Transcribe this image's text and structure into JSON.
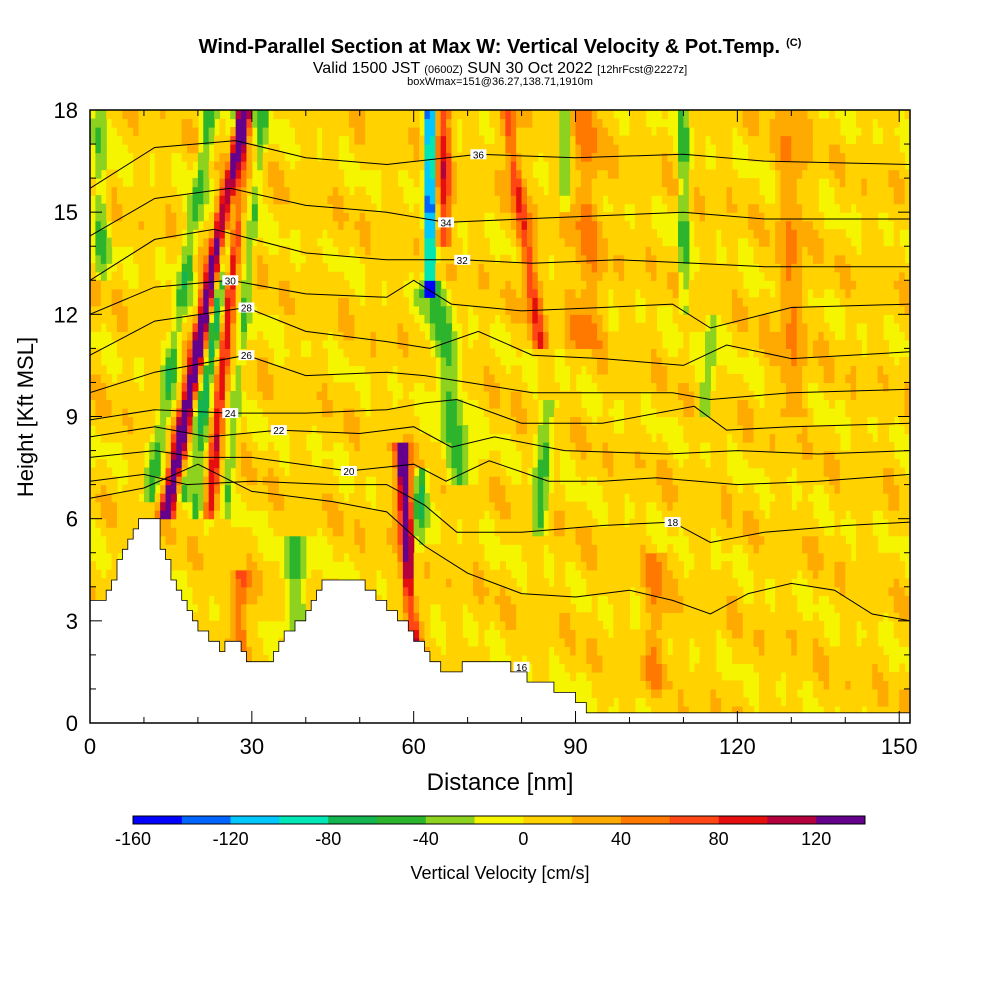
{
  "title": "Wind-Parallel Section at Max W: Vertical Velocity & Pot.Temp.",
  "title_mark": "(C)",
  "subtitle_main": "Valid 1500 JST",
  "subtitle_z": "(0600Z)",
  "subtitle_date": "SUN 30 Oct 2022",
  "subtitle_fcst": "[12hrFcst@2227z]",
  "subtitle2": "boxWmax=151@36.27,138.71,1910m",
  "colors": {
    "plot_base": "#f5f500",
    "terrain": "#ffffff",
    "contour": "#000000",
    "frame": "#000000"
  },
  "chart_data": {
    "type": "heatmap",
    "xlabel": "Distance [nm]",
    "ylabel": "Height [Kft MSL]",
    "xlim": [
      0,
      152
    ],
    "ylim": [
      0,
      18
    ],
    "x_ticks": [
      "0",
      "30",
      "60",
      "90",
      "120",
      "150"
    ],
    "x_tick_values": [
      0,
      30,
      60,
      90,
      120,
      150
    ],
    "y_ticks": [
      "0",
      "3",
      "6",
      "9",
      "12",
      "15",
      "18"
    ],
    "y_tick_values": [
      0,
      3,
      6,
      9,
      12,
      15,
      18
    ],
    "colorbar": {
      "label": "Vertical Velocity [cm/s]",
      "tick_labels": [
        "-160",
        "-120",
        "-80",
        "-40",
        "0",
        "40",
        "80",
        "120"
      ],
      "tick_values": [
        -160,
        -120,
        -80,
        -40,
        0,
        40,
        80,
        120
      ],
      "range": [
        -160,
        140
      ],
      "step": 20,
      "bin_colors": [
        "#0000ff",
        "#0064ff",
        "#00c8ff",
        "#00e6b4",
        "#14b450",
        "#2db42d",
        "#8cd21e",
        "#f5f500",
        "#ffd200",
        "#ffaa00",
        "#ff7800",
        "#ff4614",
        "#e60f0f",
        "#b4003c",
        "#64008c"
      ]
    },
    "terrain_profile": [
      [
        0,
        3.6
      ],
      [
        2,
        3.6
      ],
      [
        4,
        4.3
      ],
      [
        6,
        5.0
      ],
      [
        8,
        5.6
      ],
      [
        9.5,
        6.1
      ],
      [
        12,
        6.1
      ],
      [
        13,
        5.2
      ],
      [
        15,
        4.3
      ],
      [
        17,
        3.5
      ],
      [
        19,
        3.0
      ],
      [
        22,
        2.4
      ],
      [
        24,
        2.2
      ],
      [
        27,
        2.5
      ],
      [
        29,
        1.7
      ],
      [
        33,
        1.9
      ],
      [
        36,
        2.7
      ],
      [
        38,
        2.9
      ],
      [
        40,
        3.2
      ],
      [
        43,
        4.3
      ],
      [
        48,
        4.3
      ],
      [
        52,
        3.8
      ],
      [
        56,
        3.3
      ],
      [
        59,
        2.7
      ],
      [
        61,
        2.3
      ],
      [
        63,
        1.9
      ],
      [
        66,
        1.4
      ],
      [
        68,
        1.4
      ],
      [
        70,
        1.9
      ],
      [
        75,
        1.9
      ],
      [
        79,
        1.4
      ],
      [
        82,
        1.3
      ],
      [
        85,
        1.1
      ],
      [
        88,
        0.9
      ],
      [
        90,
        0.6
      ],
      [
        93,
        0.35
      ],
      [
        152,
        0.35
      ]
    ],
    "series": [
      {
        "name": "theta 16",
        "label": "16",
        "label_at": [
          80,
          1.65
        ],
        "values": [
          [
            0,
            6.6
          ],
          [
            10,
            6.9
          ],
          [
            20,
            7.6
          ],
          [
            30,
            6.8
          ],
          [
            45,
            6.5
          ],
          [
            55,
            6.2
          ],
          [
            62,
            5.2
          ],
          [
            70,
            4.4
          ],
          [
            80,
            3.8
          ],
          [
            90,
            3.7
          ],
          [
            100,
            3.9
          ],
          [
            108,
            3.6
          ],
          [
            115,
            3.2
          ],
          [
            122,
            3.8
          ],
          [
            130,
            4.1
          ],
          [
            138,
            3.9
          ],
          [
            145,
            3.2
          ],
          [
            152,
            3.0
          ]
        ]
      },
      {
        "name": "theta 18",
        "label": "18",
        "label_at": [
          108,
          5.9
        ],
        "values": [
          [
            0,
            7.1
          ],
          [
            10,
            7.3
          ],
          [
            18,
            7.0
          ],
          [
            30,
            7.1
          ],
          [
            45,
            7.0
          ],
          [
            55,
            7.0
          ],
          [
            62,
            6.4
          ],
          [
            68,
            5.6
          ],
          [
            80,
            5.6
          ],
          [
            95,
            5.8
          ],
          [
            108,
            5.9
          ],
          [
            115,
            5.3
          ],
          [
            125,
            5.6
          ],
          [
            140,
            5.8
          ],
          [
            152,
            5.9
          ]
        ]
      },
      {
        "name": "theta 20",
        "label": "20",
        "label_at": [
          48,
          7.4
        ],
        "values": [
          [
            0,
            7.8
          ],
          [
            12,
            8.0
          ],
          [
            20,
            7.8
          ],
          [
            30,
            7.8
          ],
          [
            48,
            7.4
          ],
          [
            60,
            7.6
          ],
          [
            66,
            7.1
          ],
          [
            74,
            7.7
          ],
          [
            85,
            7.1
          ],
          [
            95,
            7.1
          ],
          [
            105,
            7.2
          ],
          [
            120,
            7.0
          ],
          [
            135,
            7.1
          ],
          [
            152,
            7.3
          ]
        ]
      },
      {
        "name": "theta 22",
        "label": "22",
        "label_at": [
          35,
          8.6
        ],
        "values": [
          [
            0,
            8.4
          ],
          [
            12,
            8.7
          ],
          [
            22,
            8.4
          ],
          [
            35,
            8.6
          ],
          [
            50,
            8.5
          ],
          [
            60,
            8.7
          ],
          [
            67,
            8.1
          ],
          [
            75,
            8.4
          ],
          [
            88,
            8.0
          ],
          [
            107,
            7.9
          ],
          [
            120,
            8.0
          ],
          [
            135,
            7.9
          ],
          [
            152,
            8.0
          ]
        ]
      },
      {
        "name": "theta 24",
        "label": "24",
        "label_at": [
          26,
          9.1
        ],
        "values": [
          [
            0,
            8.9
          ],
          [
            12,
            9.2
          ],
          [
            26,
            9.1
          ],
          [
            40,
            9.1
          ],
          [
            55,
            9.2
          ],
          [
            62,
            9.4
          ],
          [
            68,
            9.5
          ],
          [
            80,
            8.8
          ],
          [
            95,
            8.8
          ],
          [
            112,
            9.3
          ],
          [
            118,
            8.6
          ],
          [
            130,
            8.7
          ],
          [
            152,
            8.8
          ]
        ]
      },
      {
        "name": "theta 26",
        "label": "26",
        "label_at": [
          29,
          10.8
        ],
        "values": [
          [
            0,
            9.7
          ],
          [
            12,
            10.3
          ],
          [
            29,
            10.8
          ],
          [
            40,
            10.2
          ],
          [
            55,
            10.3
          ],
          [
            62,
            10.2
          ],
          [
            70,
            10.0
          ],
          [
            82,
            9.7
          ],
          [
            95,
            9.7
          ],
          [
            108,
            9.7
          ],
          [
            115,
            9.5
          ],
          [
            130,
            9.7
          ],
          [
            152,
            9.8
          ]
        ]
      },
      {
        "name": "theta 28",
        "label": "28",
        "label_at": [
          29,
          12.2
        ],
        "values": [
          [
            0,
            10.8
          ],
          [
            12,
            11.8
          ],
          [
            29,
            12.2
          ],
          [
            40,
            11.5
          ],
          [
            55,
            11.2
          ],
          [
            63,
            11.0
          ],
          [
            72,
            11.5
          ],
          [
            82,
            10.8
          ],
          [
            95,
            10.7
          ],
          [
            110,
            10.5
          ],
          [
            118,
            11.1
          ],
          [
            130,
            10.7
          ],
          [
            152,
            10.9
          ]
        ]
      },
      {
        "name": "theta 30",
        "label": "30",
        "label_at": [
          26,
          13.0
        ],
        "values": [
          [
            0,
            12.0
          ],
          [
            12,
            12.8
          ],
          [
            26,
            13.0
          ],
          [
            40,
            12.6
          ],
          [
            55,
            12.5
          ],
          [
            60,
            13.0
          ],
          [
            67,
            12.3
          ],
          [
            80,
            12.1
          ],
          [
            95,
            12.2
          ],
          [
            108,
            12.3
          ],
          [
            115,
            11.6
          ],
          [
            130,
            12.2
          ],
          [
            152,
            12.3
          ]
        ]
      },
      {
        "name": "theta 32",
        "label": "32",
        "label_at": [
          69,
          13.6
        ],
        "values": [
          [
            0,
            13.0
          ],
          [
            12,
            14.2
          ],
          [
            23,
            14.5
          ],
          [
            40,
            13.8
          ],
          [
            55,
            13.6
          ],
          [
            69,
            13.6
          ],
          [
            82,
            13.5
          ],
          [
            98,
            13.6
          ],
          [
            112,
            13.5
          ],
          [
            125,
            13.4
          ],
          [
            152,
            13.4
          ]
        ]
      },
      {
        "name": "theta 34",
        "label": "34",
        "label_at": [
          66,
          14.7
        ],
        "values": [
          [
            0,
            14.3
          ],
          [
            12,
            15.4
          ],
          [
            26,
            15.7
          ],
          [
            40,
            15.2
          ],
          [
            55,
            15.0
          ],
          [
            66,
            14.7
          ],
          [
            80,
            14.8
          ],
          [
            95,
            14.9
          ],
          [
            110,
            15.0
          ],
          [
            125,
            14.8
          ],
          [
            152,
            14.8
          ]
        ]
      },
      {
        "name": "theta 36",
        "label": "36",
        "label_at": [
          72,
          16.7
        ],
        "values": [
          [
            0,
            15.7
          ],
          [
            12,
            16.9
          ],
          [
            27,
            17.1
          ],
          [
            40,
            16.6
          ],
          [
            55,
            16.4
          ],
          [
            72,
            16.7
          ],
          [
            90,
            16.6
          ],
          [
            110,
            16.7
          ],
          [
            125,
            16.5
          ],
          [
            152,
            16.4
          ]
        ]
      }
    ]
  }
}
